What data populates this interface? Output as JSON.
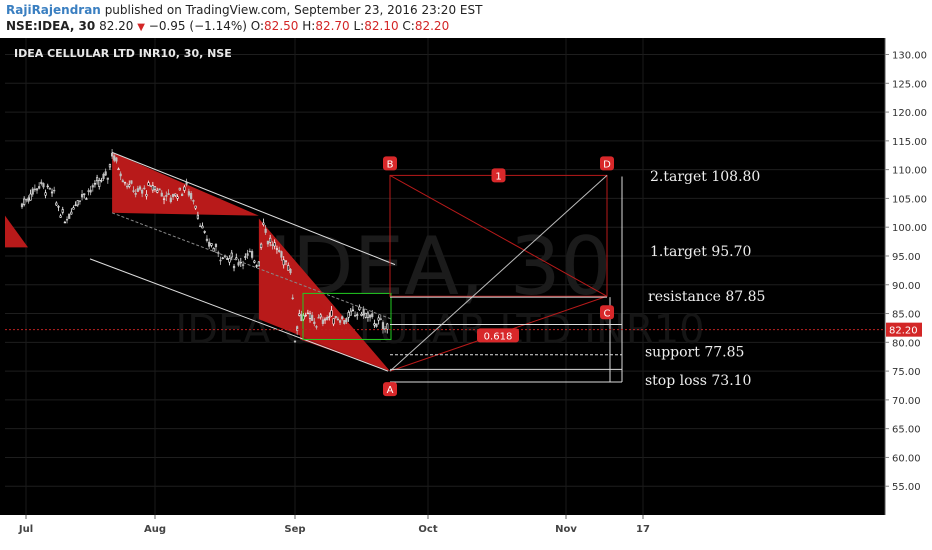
{
  "header": {
    "author": "RajiRajendran",
    "published": "published on TradingView.com, September 23, 2016 23:20 EST",
    "symbol": "NSE:IDEA, 30",
    "last": "82.20",
    "change": "−0.95 (−1.14%)",
    "o_label": "O:",
    "o_val": "82.50",
    "h_label": "H:",
    "h_val": "82.70",
    "l_label": "L:",
    "l_val": "82.10",
    "c_label": "C:",
    "c_val": "82.20"
  },
  "colors": {
    "background": "#000000",
    "accent_red": "#b81a1a",
    "label_red": "#d8282a",
    "candle_up": "#ffffff",
    "line_white": "#dddddd",
    "green_box": "#22cc22"
  },
  "chart_data": {
    "type": "candlestick",
    "title": "IDEA CELLULAR LTD INR10, 30, NSE",
    "watermark_top": "IDEA, 30",
    "watermark_bottom": "IDEA CELLULAR LTD INR10",
    "ylim": [
      50,
      132
    ],
    "yticks": [
      55,
      60,
      65,
      70,
      75,
      80,
      85,
      90,
      95,
      100,
      105,
      110,
      115,
      120,
      125,
      130
    ],
    "ytick_labels": [
      "55.00",
      "60.00",
      "65.00",
      "70.00",
      "75.00",
      "80.00",
      "85.00",
      "90.00",
      "95.00",
      "100.00",
      "105.00",
      "110.00",
      "115.00",
      "120.00",
      "125.00",
      "130.00"
    ],
    "x_labels": [
      "Jul",
      "Aug",
      "Sep",
      "Oct",
      "Nov",
      "17"
    ],
    "last_price": 82.2,
    "last_price_label": "82.20",
    "price_path": [
      {
        "t": "Jul 1",
        "p": 104.0
      },
      {
        "t": "Jul 5",
        "p": 107.5
      },
      {
        "t": "Jul 8",
        "p": 106.0
      },
      {
        "t": "Jul 11",
        "p": 101.0
      },
      {
        "t": "Jul 14",
        "p": 105.0
      },
      {
        "t": "Jul 18",
        "p": 107.0
      },
      {
        "t": "Jul 21",
        "p": 109.0
      },
      {
        "t": "Jul 22",
        "p": 113.0
      },
      {
        "t": "Jul 25",
        "p": 108.0
      },
      {
        "t": "Jul 28",
        "p": 106.0
      },
      {
        "t": "Aug 1",
        "p": 107.0
      },
      {
        "t": "Aug 4",
        "p": 105.0
      },
      {
        "t": "Aug 8",
        "p": 107.0
      },
      {
        "t": "Aug 10",
        "p": 104.0
      },
      {
        "t": "Aug 12",
        "p": 98.0
      },
      {
        "t": "Aug 16",
        "p": 95.0
      },
      {
        "t": "Aug 19",
        "p": 94.0
      },
      {
        "t": "Aug 22",
        "p": 95.0
      },
      {
        "t": "Aug 24",
        "p": 94.0
      },
      {
        "t": "Aug 25",
        "p": 101.0
      },
      {
        "t": "Aug 26",
        "p": 98.0
      },
      {
        "t": "Aug 29",
        "p": 95.0
      },
      {
        "t": "Aug 31",
        "p": 93.0
      },
      {
        "t": "Sep 1",
        "p": 81.0
      },
      {
        "t": "Sep 2",
        "p": 85.0
      },
      {
        "t": "Sep 6",
        "p": 83.5
      },
      {
        "t": "Sep 9",
        "p": 84.5
      },
      {
        "t": "Sep 13",
        "p": 84.0
      },
      {
        "t": "Sep 16",
        "p": 85.5
      },
      {
        "t": "Sep 20",
        "p": 83.5
      },
      {
        "t": "Sep 23",
        "p": 82.2
      }
    ],
    "pattern_points": [
      {
        "label": "A",
        "p": 75.0
      },
      {
        "label": "B",
        "p": 109.0
      },
      {
        "label": "C",
        "p": 88.0
      },
      {
        "label": "D",
        "p": 109.0
      }
    ],
    "pattern_label_1": "1",
    "fib_label": "0.618",
    "levels": [
      {
        "name": "2.target",
        "value": 108.8,
        "text": "2.target 108.80"
      },
      {
        "name": "1.target",
        "value": 95.7,
        "text": "1.target 95.70"
      },
      {
        "name": "resistance",
        "value": 87.85,
        "text": "resistance 87.85"
      },
      {
        "name": "support",
        "value": 77.85,
        "text": "support 77.85"
      },
      {
        "name": "stop loss",
        "value": 73.1,
        "text": "stop loss 73.10"
      }
    ]
  }
}
